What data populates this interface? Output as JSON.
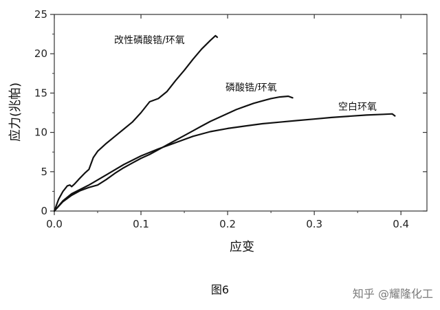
{
  "chart_data": {
    "type": "line",
    "xlabel": "应变",
    "ylabel": "应力(兆帕)",
    "xlim": [
      0,
      0.43
    ],
    "ylim": [
      0,
      25
    ],
    "xticks": [
      "0.0",
      "0.1",
      "0.2",
      "0.3",
      "0.4"
    ],
    "yticks": [
      "0",
      "5",
      "10",
      "15",
      "20",
      "25"
    ],
    "grid": false,
    "series": [
      {
        "name": "改性磷酸锆/环氧",
        "x": [
          0,
          0.005,
          0.01,
          0.015,
          0.018,
          0.02,
          0.023,
          0.028,
          0.035,
          0.04,
          0.045,
          0.05,
          0.06,
          0.07,
          0.08,
          0.09,
          0.1,
          0.11,
          0.12,
          0.13,
          0.14,
          0.15,
          0.16,
          0.17,
          0.18,
          0.186,
          0.188
        ],
        "y": [
          0,
          1.5,
          2.5,
          3.2,
          3.3,
          3.1,
          3.4,
          4.0,
          4.8,
          5.3,
          6.8,
          7.6,
          8.6,
          9.5,
          10.4,
          11.3,
          12.5,
          13.9,
          14.3,
          15.2,
          16.6,
          17.9,
          19.3,
          20.6,
          21.7,
          22.3,
          22.1
        ]
      },
      {
        "name": "磷酸锆/环氧",
        "x": [
          0,
          0.01,
          0.02,
          0.03,
          0.04,
          0.05,
          0.06,
          0.07,
          0.08,
          0.09,
          0.1,
          0.11,
          0.12,
          0.13,
          0.14,
          0.15,
          0.16,
          0.17,
          0.18,
          0.19,
          0.2,
          0.21,
          0.22,
          0.23,
          0.24,
          0.25,
          0.26,
          0.27,
          0.275
        ],
        "y": [
          0,
          1.2,
          2.0,
          2.6,
          3.0,
          3.3,
          4.0,
          4.8,
          5.5,
          6.1,
          6.7,
          7.2,
          7.8,
          8.4,
          9.0,
          9.6,
          10.2,
          10.8,
          11.4,
          11.9,
          12.4,
          12.9,
          13.3,
          13.7,
          14.0,
          14.3,
          14.5,
          14.6,
          14.4
        ]
      },
      {
        "name": "空白环氧",
        "x": [
          0,
          0.01,
          0.02,
          0.04,
          0.06,
          0.08,
          0.1,
          0.12,
          0.14,
          0.16,
          0.18,
          0.2,
          0.22,
          0.24,
          0.26,
          0.28,
          0.3,
          0.32,
          0.34,
          0.36,
          0.38,
          0.39,
          0.393
        ],
        "y": [
          0,
          1.3,
          2.2,
          3.3,
          4.6,
          5.9,
          7.0,
          7.9,
          8.7,
          9.5,
          10.1,
          10.5,
          10.8,
          11.1,
          11.3,
          11.5,
          11.7,
          11.9,
          12.05,
          12.2,
          12.3,
          12.35,
          12.1
        ]
      }
    ]
  },
  "caption": "图6",
  "watermark": "知乎 @耀隆化工"
}
